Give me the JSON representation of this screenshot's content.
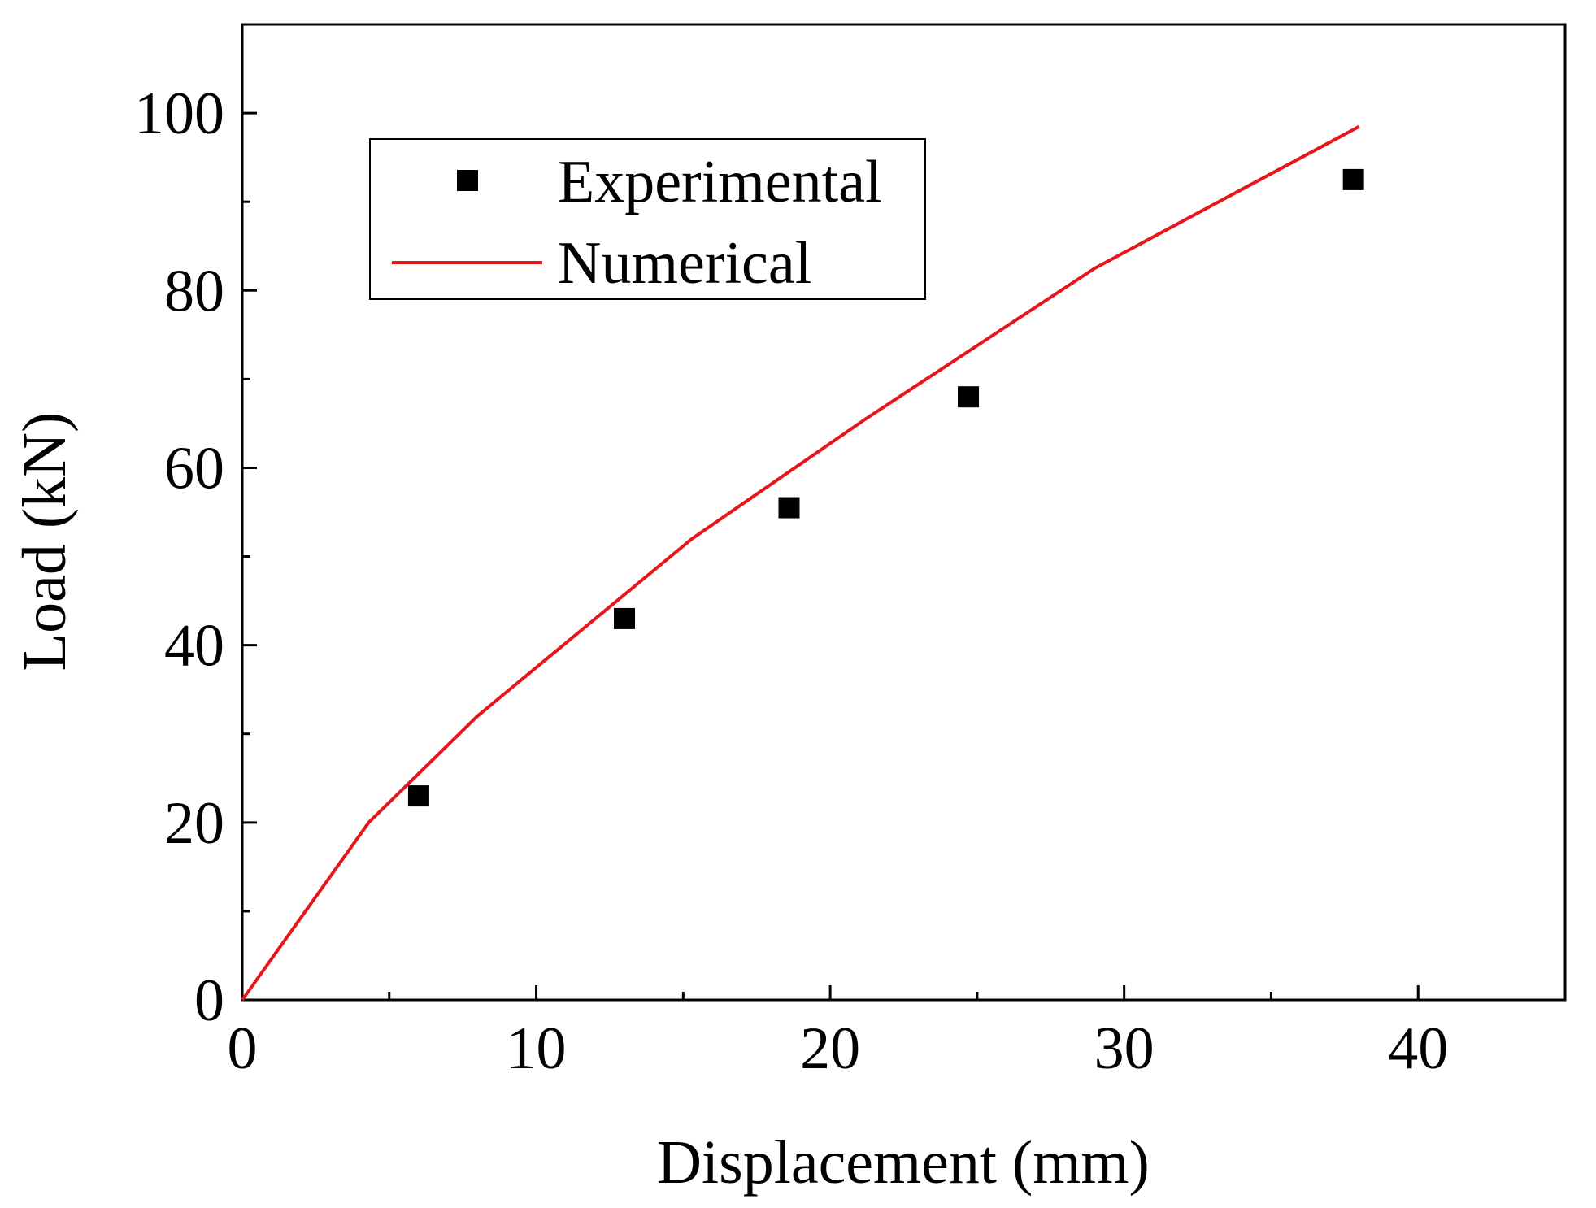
{
  "chart_data": {
    "type": "scatter",
    "title": "",
    "xlabel": "Displacement (mm)",
    "ylabel": "Load (kN)",
    "xlim": [
      0,
      45
    ],
    "ylim": [
      0,
      110
    ],
    "xticks": [
      0,
      10,
      20,
      30,
      40
    ],
    "yticks": [
      0,
      20,
      40,
      60,
      80,
      100
    ],
    "x_tick_labels": [
      "0",
      "10",
      "20",
      "30",
      "40"
    ],
    "y_tick_labels": [
      "0",
      "20",
      "40",
      "60",
      "80",
      "100"
    ],
    "grid": false,
    "legend_position": "top-left",
    "series": [
      {
        "name": "Experimental",
        "kind": "scatter",
        "marker": "square",
        "color": "#000000",
        "x": [
          6.0,
          13.0,
          18.6,
          24.7,
          37.8
        ],
        "y": [
          23.0,
          43.0,
          55.5,
          68.0,
          92.5
        ]
      },
      {
        "name": "Numerical",
        "kind": "line",
        "color": "#e8161b",
        "x": [
          0,
          4.3,
          8.0,
          15.3,
          21.2,
          29.0,
          38.0
        ],
        "y": [
          0,
          20.0,
          32.0,
          52.0,
          65.5,
          82.5,
          98.5
        ]
      }
    ]
  }
}
